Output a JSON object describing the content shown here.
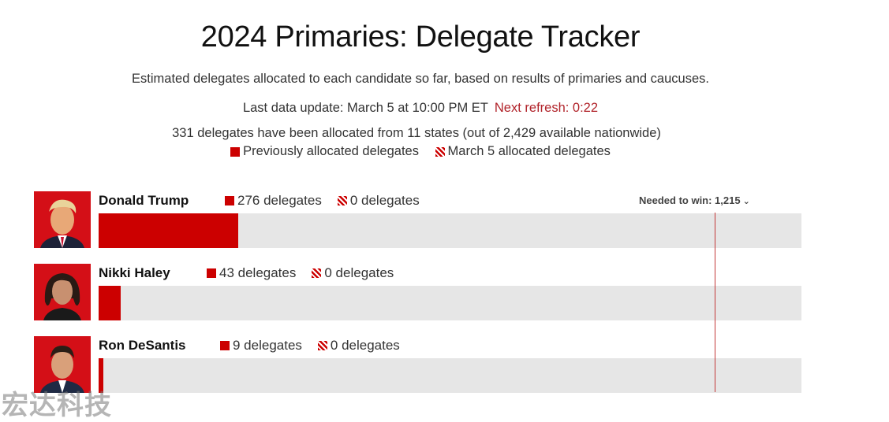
{
  "title": "2024 Primaries: Delegate Tracker",
  "subtitle": "Estimated delegates allocated to each candidate so far, based on results of primaries and caucuses.",
  "last_update": "Last data update: March 5 at 10:00 PM ET",
  "next_refresh": "Next refresh: 0:22",
  "summary": "331 delegates have been allocated from 11 states (out of 2,429 available nationwide)",
  "legend": {
    "previous": "Previously allocated delegates",
    "current": "March 5 allocated delegates"
  },
  "needed_to_win": "Needed to win: 1,215",
  "colors": {
    "accent": "#cc0000",
    "track": "#e6e6e6",
    "refresh": "#b1232a"
  },
  "chart_data": {
    "type": "bar",
    "orientation": "horizontal",
    "categories": [
      "Donald Trump",
      "Nikki Haley",
      "Ron DeSantis"
    ],
    "series": [
      {
        "name": "Previously allocated delegates",
        "values": [
          276,
          43,
          9
        ]
      },
      {
        "name": "March 5 allocated delegates",
        "values": [
          0,
          0,
          0
        ]
      }
    ],
    "labels": {
      "previous": [
        "276 delegates",
        "43 delegates",
        "9 delegates"
      ],
      "current": [
        "0 delegates",
        "0 delegates",
        "0 delegates"
      ]
    },
    "threshold": 1215,
    "xlim": [
      0,
      1387
    ]
  },
  "watermark": "宏达科技"
}
